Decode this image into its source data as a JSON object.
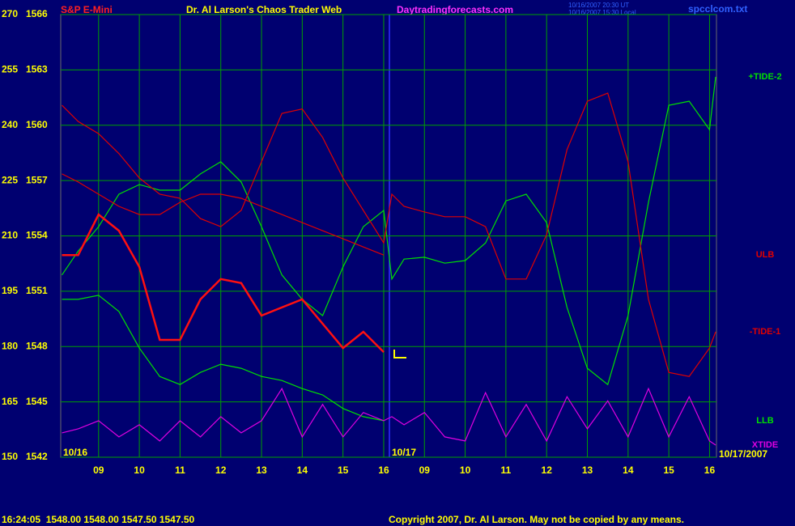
{
  "chart_data": {
    "type": "line",
    "title": "Dr. Al Larson's Chaos Trader Web",
    "symbol": "S&P E-Mini",
    "site": "Daytradingforecasts.com",
    "timestamps": [
      "10/16/2007 20:30 UT",
      "10/16/2007 15:30 Local"
    ],
    "file": "spcclcom.txt",
    "day_labels": [
      "10/16",
      "10/17"
    ],
    "date": "10/17/2007",
    "status": "16:24:05  1548.00 1548.00 1547.50 1547.50",
    "copyright": "Copyright 2007, Dr. Al Larson. May not be copied by any means.",
    "grid": true,
    "grid_color": "#00a000",
    "xlim": [
      8.07,
      24.17
    ],
    "xticks": [
      {
        "value": 9,
        "label": "09"
      },
      10,
      11,
      12,
      13,
      14,
      15,
      16,
      {
        "value": 17,
        "label": "09"
      },
      {
        "value": 18,
        "label": "10"
      },
      {
        "value": 19,
        "label": "11"
      },
      {
        "value": 20,
        "label": "12"
      },
      {
        "value": 21,
        "label": "13"
      },
      {
        "value": 22,
        "label": "14"
      },
      {
        "value": 23,
        "label": "15"
      },
      {
        "value": 24,
        "label": "16"
      }
    ],
    "ylim": [
      150,
      270
    ],
    "yticks": [
      150,
      165,
      180,
      195,
      210,
      225,
      240,
      255,
      270
    ],
    "y2lim": [
      1542,
      1566
    ],
    "y2ticks": [
      1542,
      1545,
      1548,
      1551,
      1554,
      1557,
      1560,
      1563,
      1566
    ],
    "x": [
      8.1,
      8.5,
      9,
      9.5,
      10,
      10.5,
      11,
      11.5,
      12,
      12.5,
      13,
      13.5,
      14,
      14.5,
      15,
      15.5,
      16,
      16.2,
      16.5,
      17,
      17.5,
      18,
      18.5,
      19,
      19.5,
      20,
      20.5,
      21,
      21.5,
      22,
      22.5,
      23,
      23.5,
      24,
      24.15
    ],
    "series": [
      {
        "name": "+TIDE-2",
        "color": "#00e000",
        "values": [
          199.4,
          205.9,
          212.5,
          221.3,
          223.9,
          222.4,
          222.4,
          226.8,
          230.1,
          224.6,
          212.5,
          199.4,
          192.8,
          188.4,
          201.6,
          212.5,
          216.9,
          198.3,
          203.7,
          204.2,
          202.6,
          203.3,
          208.1,
          219.5,
          221.3,
          213.6,
          190.6,
          174.1,
          169.7,
          188.4,
          219.1,
          245.4,
          246.5,
          238.8,
          253.1
        ]
      },
      {
        "name": "ULB",
        "color": "#e00000",
        "values": [
          226.8,
          224.6,
          221.3,
          218.0,
          215.8,
          215.8,
          219.1,
          221.3,
          221.3,
          220.2,
          218.0,
          215.8,
          213.6,
          211.4,
          209.2,
          207.0,
          204.8,
          null,
          null,
          null,
          null,
          null,
          null,
          null,
          null,
          null,
          null,
          null,
          null,
          null,
          null,
          null,
          null,
          null,
          null
        ]
      },
      {
        "name": "-TIDE-1",
        "color": "#e00000",
        "values": [
          245.4,
          241.0,
          237.7,
          232.3,
          225.7,
          221.3,
          220.2,
          214.7,
          212.5,
          216.9,
          230.1,
          243.2,
          244.4,
          236.7,
          225.7,
          216.9,
          208.1,
          221.3,
          218.0,
          216.5,
          215.2,
          215.2,
          212.5,
          198.3,
          198.3,
          210.3,
          233.4,
          246.5,
          248.7,
          230.1,
          192.8,
          173.0,
          171.9,
          179.6,
          184.0
        ]
      },
      {
        "name": "LLB",
        "color": "#00e000",
        "values": [
          192.8,
          192.8,
          193.9,
          189.5,
          179.6,
          171.9,
          169.7,
          173.0,
          175.2,
          174.1,
          171.9,
          170.8,
          168.6,
          166.9,
          163.2,
          161.0,
          159.9,
          null,
          null,
          null,
          null,
          null,
          null,
          null,
          null,
          null,
          null,
          null,
          null,
          null,
          null,
          null,
          null,
          null,
          null
        ]
      },
      {
        "name": "XTIDE",
        "color": "#e000e0",
        "values": [
          156.6,
          157.7,
          159.9,
          155.5,
          158.8,
          154.4,
          159.9,
          155.5,
          161.0,
          156.6,
          159.9,
          168.6,
          155.5,
          164.3,
          155.5,
          162.1,
          159.9,
          161.0,
          158.8,
          162.1,
          155.5,
          154.4,
          167.5,
          155.5,
          164.3,
          154.4,
          166.4,
          157.7,
          165.3,
          155.5,
          168.6,
          155.5,
          166.4,
          154.4,
          153.3
        ]
      },
      {
        "color": "#ff1010",
        "values": [
          204.8,
          204.8,
          215.8,
          211.4,
          201.6,
          181.8,
          181.8,
          192.8,
          198.3,
          197.2,
          188.4,
          190.6,
          192.8,
          186.2,
          179.6,
          184.0,
          178.5,
          null,
          null,
          null,
          null,
          null,
          null,
          null,
          null,
          null,
          null,
          null,
          null,
          null,
          null,
          null,
          null,
          null,
          null
        ]
      }
    ]
  }
}
